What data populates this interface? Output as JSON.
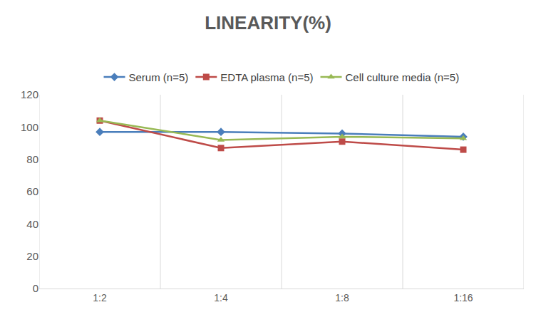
{
  "chart_data": {
    "type": "line",
    "title": "LINEARITY(%)",
    "categories": [
      "1:2",
      "1:4",
      "1:8",
      "1:16"
    ],
    "series": [
      {
        "name": "Serum (n=5)",
        "color": "#4a7ebb",
        "marker": "diamond",
        "values": [
          97,
          97,
          96,
          94
        ]
      },
      {
        "name": "EDTA plasma (n=5)",
        "color": "#be4b48",
        "marker": "square",
        "values": [
          104,
          87,
          91,
          86
        ]
      },
      {
        "name": "Cell culture media (n=5)",
        "color": "#98b954",
        "marker": "triangle-up",
        "values": [
          104,
          92,
          94,
          93
        ]
      }
    ],
    "ylim": [
      0,
      120
    ],
    "yticks": [
      0,
      20,
      40,
      60,
      80,
      100,
      120
    ],
    "grid": true,
    "legend": "top"
  }
}
